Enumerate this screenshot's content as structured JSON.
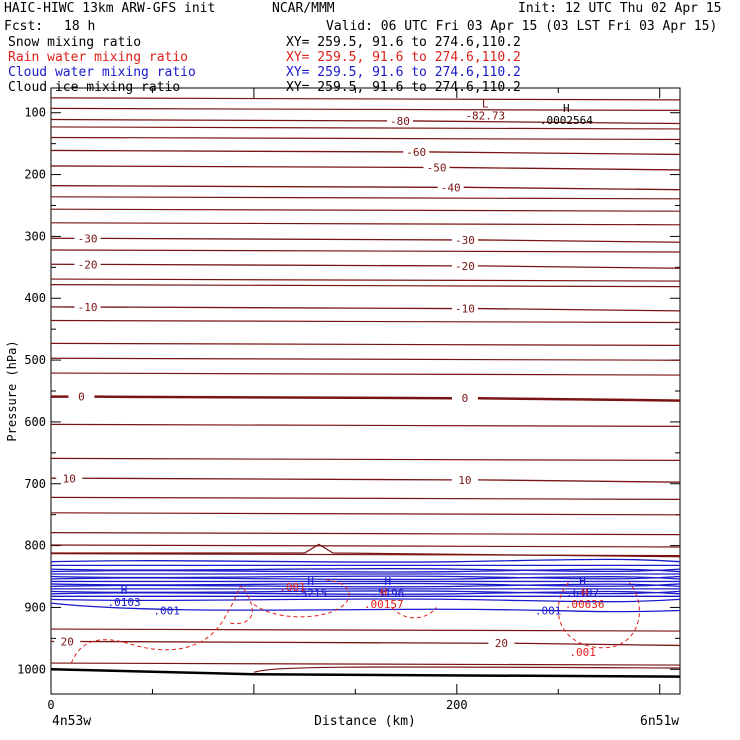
{
  "header": {
    "model": "HAIC-HIWC 13km ARW-GFS init",
    "org": "NCAR/MMM",
    "init": "Init: 12 UTC Thu 02 Apr 15",
    "fcst_label": "Fcst:",
    "fcst_value": "18 h",
    "valid": "Valid: 06 UTC Fri 03 Apr 15 (03 LST Fri 03 Apr 15)"
  },
  "fields": [
    {
      "name": "Snow mixing ratio",
      "xy": "XY= 259.5, 91.6 to 274.6,110.2",
      "color": "#000000"
    },
    {
      "name": "Rain water mixing ratio",
      "xy": "XY= 259.5, 91.6 to 274.6,110.2",
      "color": "#e0201a"
    },
    {
      "name": "Cloud water mixing ratio",
      "xy": "XY= 259.5, 91.6 to 274.6,110.2",
      "color": "#1a1acc"
    },
    {
      "name": "Cloud ice mixing ratio",
      "xy": "XY= 259.5, 91.6 to 274.6,110.2",
      "color": "#000000"
    }
  ],
  "colors": {
    "temperature": "#7a1414",
    "cloud_water": "#1a1acc",
    "rain_water": "#e0201a",
    "terrain": "#000000"
  },
  "chart_data": {
    "type": "cross-section",
    "xlabel": "Distance (km)",
    "ylabel": "Pressure (hPa)",
    "xlim": [
      0,
      310
    ],
    "ylim": [
      1040,
      60
    ],
    "x_ticks": [
      0,
      200
    ],
    "y_ticks": [
      100,
      200,
      300,
      400,
      500,
      600,
      700,
      800,
      900,
      1000
    ],
    "left_endpoint": "4n53w",
    "right_endpoint": "6n51w",
    "temperature_contours": [
      {
        "label": "-80",
        "p": 111,
        "labels_at": [
          172
        ]
      },
      {
        "label": "-60",
        "p": 161,
        "labels_at": [
          180
        ]
      },
      {
        "label": "-50",
        "p": 186,
        "labels_at": [
          190
        ]
      },
      {
        "label": "-40",
        "p": 218,
        "labels_at": [
          197
        ]
      },
      {
        "label": "-30",
        "p": 303,
        "labels_at": [
          18,
          204
        ]
      },
      {
        "label": "-20",
        "p": 345,
        "labels_at": [
          18,
          204
        ]
      },
      {
        "label": "-10",
        "p": 414,
        "labels_at": [
          18,
          204
        ]
      },
      {
        "label": "0",
        "p": 559,
        "labels_at": [
          15,
          204
        ]
      },
      {
        "label": "10",
        "p": 691,
        "labels_at": [
          9,
          204
        ]
      },
      {
        "label": "20",
        "p": 955,
        "labels_at": [
          8,
          222
        ]
      }
    ],
    "extrema": [
      {
        "type": "L",
        "value": "-82.73",
        "x": 214,
        "p": 103
      },
      {
        "type": "H",
        "value": ".0002564",
        "x": 254,
        "p": 110
      },
      {
        "type": "H",
        "value": ".0103",
        "x": 36,
        "p": 890
      },
      {
        "type": "H",
        "value": ".5215",
        "x": 128,
        "p": 875
      },
      {
        "type": "H",
        "value": ".5196",
        "x": 166,
        "p": 875
      },
      {
        "type": "H",
        "value": ".00157",
        "x": 164,
        "p": 893
      },
      {
        "type": "H",
        "value": ".6407",
        "x": 262,
        "p": 874
      },
      {
        "type": "H",
        "value": ".00636",
        "x": 263,
        "p": 893
      }
    ],
    "contour_labels": [
      {
        "text": ".001",
        "x": 57,
        "p": 905,
        "field": "cloud_water"
      },
      {
        "text": ".001",
        "x": 119,
        "p": 867,
        "field": "rain_water"
      },
      {
        "text": ".001",
        "x": 245,
        "p": 905,
        "field": "cloud_water"
      },
      {
        "text": ".001",
        "x": 262,
        "p": 972,
        "field": "rain_water"
      }
    ]
  }
}
